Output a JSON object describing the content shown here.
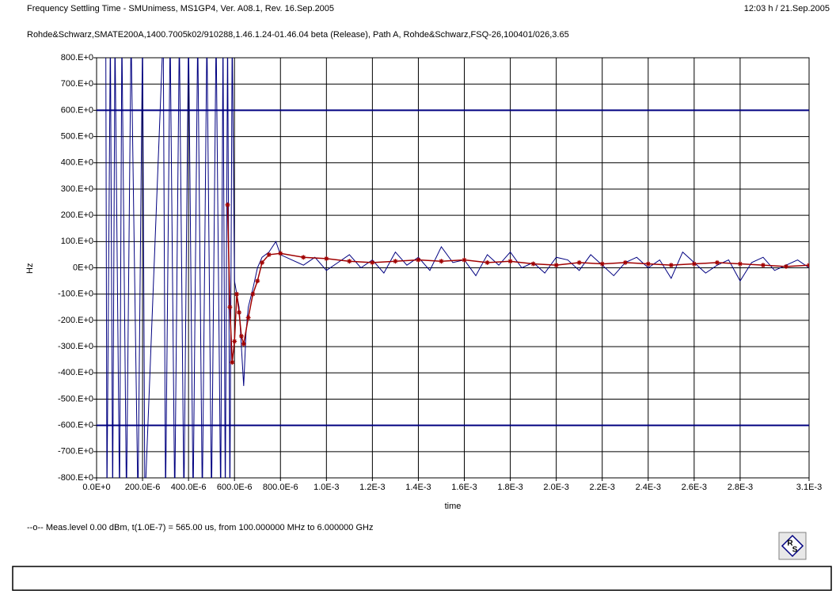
{
  "header": {
    "title": "Frequency Settling Time - SMUnimess, MS1GP4, Ver. A08.1, Rev. 16.Sep.2005",
    "timestamp": "12:03 h  /  21.Sep.2005",
    "subtitle": "Rohde&Schwarz,SMATE200A,1400.7005k02/910288,1.46.1.24-01.46.04 beta  (Release), Path A, Rohde&Schwarz,FSQ-26,100401/026,3.65"
  },
  "chart_data": {
    "type": "line",
    "x_label": "time",
    "y_label": "Hz",
    "xlim": [
      0,
      0.0031
    ],
    "xticks": [
      {
        "value": 0,
        "label": "0.0E+0"
      },
      {
        "value": 0.0002,
        "label": "200.0E-6"
      },
      {
        "value": 0.0004,
        "label": "400.0E-6"
      },
      {
        "value": 0.0006,
        "label": "600.0E-6"
      },
      {
        "value": 0.0008,
        "label": "800.0E-6"
      },
      {
        "value": 0.001,
        "label": "1.0E-3"
      },
      {
        "value": 0.0012,
        "label": "1.2E-3"
      },
      {
        "value": 0.0014,
        "label": "1.4E-3"
      },
      {
        "value": 0.0016,
        "label": "1.6E-3"
      },
      {
        "value": 0.0018,
        "label": "1.8E-3"
      },
      {
        "value": 0.002,
        "label": "2.0E-3"
      },
      {
        "value": 0.0022,
        "label": "2.2E-3"
      },
      {
        "value": 0.0024,
        "label": "2.4E-3"
      },
      {
        "value": 0.0026,
        "label": "2.6E-3"
      },
      {
        "value": 0.0028,
        "label": "2.8E-3"
      },
      {
        "value": 0.0031,
        "label": "3.1E-3"
      }
    ],
    "ylim": [
      -800,
      800
    ],
    "yticks": [
      {
        "value": 800,
        "label": "800.E+0"
      },
      {
        "value": 700,
        "label": "700.E+0"
      },
      {
        "value": 600,
        "label": "600.E+0"
      },
      {
        "value": 500,
        "label": "500.E+0"
      },
      {
        "value": 400,
        "label": "400.E+0"
      },
      {
        "value": 300,
        "label": "300.E+0"
      },
      {
        "value": 200,
        "label": "200.E+0"
      },
      {
        "value": 100,
        "label": "100.E+0"
      },
      {
        "value": 0,
        "label": "0E+0"
      },
      {
        "value": -100,
        "label": "-100.E+0"
      },
      {
        "value": -200,
        "label": "-200.E+0"
      },
      {
        "value": -300,
        "label": "-300.E+0"
      },
      {
        "value": -400,
        "label": "-400.E+0"
      },
      {
        "value": -500,
        "label": "-500.E+0"
      },
      {
        "value": -600,
        "label": "-600.E+0"
      },
      {
        "value": -700,
        "label": "-700.E+0"
      },
      {
        "value": -800,
        "label": "-800.E+0"
      }
    ],
    "grid": true,
    "limit_lines": [
      600,
      -600
    ],
    "limit_color": "#000080",
    "series": [
      {
        "name": "--o-- Meas.level 0.00 dBm, t(1.0E-7) = 565.00 us, from 100.000000 MHz to 6.000000 GHz",
        "color": "#000080",
        "x": [
          4e-05,
          4.5e-05,
          6e-05,
          7e-05,
          8e-05,
          0.0001,
          0.00011,
          0.00013,
          0.00015,
          0.00018,
          0.0002,
          0.00021,
          0.00029,
          0.0003,
          0.00032,
          0.00034,
          0.00036,
          0.00038,
          0.0004,
          0.00042,
          0.00044,
          0.00046,
          0.00048,
          0.0005,
          0.00052,
          0.00054,
          0.00055,
          0.00056,
          0.00057,
          0.00058,
          0.00059,
          0.0006,
          0.00061,
          0.00062,
          0.00063,
          0.00064,
          0.00065,
          0.00066,
          0.00068,
          0.0007,
          0.00072,
          0.00075,
          0.00078,
          0.0008,
          0.00085,
          0.0009,
          0.00095,
          0.001,
          0.00105,
          0.0011,
          0.00115,
          0.0012,
          0.00125,
          0.0013,
          0.00135,
          0.0014,
          0.00145,
          0.0015,
          0.00155,
          0.0016,
          0.00165,
          0.0017,
          0.00175,
          0.0018,
          0.00185,
          0.0019,
          0.00195,
          0.002,
          0.00205,
          0.0021,
          0.00215,
          0.0022,
          0.00225,
          0.0023,
          0.00235,
          0.0024,
          0.00245,
          0.0025,
          0.00255,
          0.0026,
          0.00265,
          0.0027,
          0.00275,
          0.0028,
          0.00285,
          0.0029,
          0.00295,
          0.003,
          0.00305,
          0.0031
        ],
        "values": [
          900,
          -900,
          900,
          -900,
          900,
          -900,
          900,
          -900,
          900,
          -900,
          900,
          -900,
          900,
          -900,
          900,
          -900,
          900,
          -900,
          900,
          -900,
          900,
          -900,
          900,
          -900,
          900,
          -900,
          900,
          -900,
          900,
          -900,
          900,
          -50,
          -100,
          -150,
          -300,
          -450,
          -250,
          -150,
          -80,
          0,
          40,
          60,
          100,
          50,
          30,
          10,
          40,
          -10,
          20,
          50,
          0,
          30,
          -20,
          60,
          10,
          40,
          -10,
          80,
          20,
          30,
          -30,
          50,
          10,
          60,
          0,
          20,
          -20,
          40,
          30,
          -10,
          50,
          10,
          -30,
          20,
          40,
          0,
          30,
          -40,
          60,
          20,
          -20,
          10,
          30,
          -50,
          20,
          40,
          -10,
          10,
          30,
          0
        ]
      },
      {
        "color": "#a00000",
        "x": [
          0.00057,
          0.00058,
          0.00059,
          0.0006,
          0.00061,
          0.00062,
          0.00063,
          0.00064,
          0.00066,
          0.00068,
          0.0007,
          0.00072,
          0.00075,
          0.0008,
          0.0009,
          0.001,
          0.0011,
          0.0012,
          0.0013,
          0.0014,
          0.0015,
          0.0016,
          0.0017,
          0.0018,
          0.0019,
          0.002,
          0.0021,
          0.0022,
          0.0023,
          0.0024,
          0.0025,
          0.0026,
          0.0027,
          0.0028,
          0.0029,
          0.003,
          0.0031
        ],
        "values": [
          240,
          -150,
          -360,
          -280,
          -100,
          -170,
          -260,
          -290,
          -190,
          -100,
          -50,
          20,
          50,
          55,
          40,
          35,
          25,
          20,
          25,
          30,
          25,
          30,
          20,
          25,
          15,
          10,
          20,
          15,
          20,
          15,
          10,
          15,
          20,
          15,
          10,
          5,
          10
        ]
      }
    ]
  },
  "logo": {
    "top": "R",
    "bottom": "S"
  }
}
